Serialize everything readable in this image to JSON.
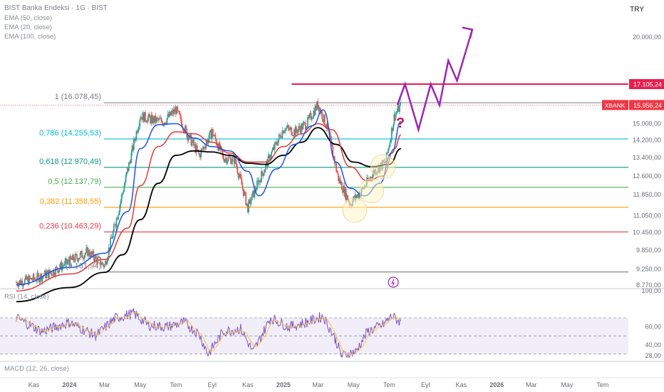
{
  "header": {
    "title": "BIST Banka Endeksi · 1G · BIST",
    "indicators": [
      "EMA (50, close)",
      "EMA (20, close)",
      "EMA (100, close)"
    ],
    "currency": "TRY"
  },
  "rsi_label": "RSI (14, close)",
  "macd_label": "MACD (12, 26, close)",
  "colors": {
    "candle_up": "#26a69a",
    "candle_down": "#ef5350",
    "ema20": "#1e53e5",
    "ema50": "#e53935",
    "ema100": "#000000",
    "resistance": "#e91e4f",
    "projection": "#9c27b0",
    "rsi": "#7e57c2",
    "rsi_ma": "#f5c542"
  },
  "chart_data": {
    "type": "line",
    "title": "BIST Banka Endeksi",
    "y_axis": {
      "scale": "log",
      "range": [
        8770,
        21500
      ],
      "ticks": [
        "20.000,00",
        "15.000,00",
        "14.200,00",
        "13.400,00",
        "12.600,00",
        "11.850,00",
        "11.050,00",
        "10.450,00",
        "9.850,00",
        "9.250,00",
        "8.770,00"
      ]
    },
    "x_axis": {
      "ticks": [
        "Kas",
        "2024",
        "Mar",
        "May",
        "Tem",
        "Eyl",
        "Kas",
        "2025",
        "Mar",
        "May",
        "Tem",
        "Eyl",
        "Kas",
        "2026",
        "Mar",
        "May",
        "Tem"
      ],
      "bold_ticks": [
        "2024",
        "2025",
        "2026"
      ]
    },
    "fibonacci_levels": [
      {
        "label": "1 (16.078,45)",
        "ratio": "1",
        "price": 16078.45,
        "color": "#787b86"
      },
      {
        "label": "0,786 (14.255,53)",
        "ratio": "0,786",
        "price": 14255.53,
        "color": "#00bcd4"
      },
      {
        "label": "0,618 (12.970,49)",
        "ratio": "0,618",
        "price": 12970.49,
        "color": "#089981"
      },
      {
        "label": "0,5 (12.137,79)",
        "ratio": "0,5",
        "price": 12137.79,
        "color": "#4caf50"
      },
      {
        "label": "0,382 (11.358,55)",
        "ratio": "0,382",
        "price": 11358.55,
        "color": "#ff9800"
      },
      {
        "label": "0,236 (10.463,29)",
        "ratio": "0,236",
        "price": 10463.29,
        "color": "#f23645"
      },
      {
        "label": "0 (9.161,94)",
        "ratio": "0",
        "price": 9161.94,
        "color": "#787b86"
      }
    ],
    "price_labels": [
      {
        "text": "17.105,24",
        "price": 17105.24,
        "color": "#e91e4f"
      },
      {
        "name": "XBANK",
        "text": "15.956,24",
        "price": 15956.24,
        "color": "#f23645"
      }
    ],
    "annotations": [
      "?"
    ],
    "close_series": {
      "x": [
        "2023-10-02",
        "2023-11-01",
        "2023-12-01",
        "2024-01-02",
        "2024-02-01",
        "2024-03-01",
        "2024-03-20",
        "2024-04-10",
        "2024-05-01",
        "2024-05-20",
        "2024-06-10",
        "2024-07-01",
        "2024-07-20",
        "2024-08-10",
        "2024-09-01",
        "2024-09-20",
        "2024-10-10",
        "2024-11-01",
        "2024-11-20",
        "2024-12-10",
        "2025-01-02",
        "2025-01-20",
        "2025-02-10",
        "2025-03-01",
        "2025-03-18",
        "2025-04-05",
        "2025-04-25",
        "2025-05-15",
        "2025-06-05",
        "2025-06-25",
        "2025-07-10",
        "2025-07-21"
      ],
      "values": [
        8850,
        8950,
        9150,
        9500,
        9800,
        9350,
        10800,
        12900,
        15400,
        15200,
        15100,
        15700,
        14500,
        13500,
        14600,
        13400,
        13300,
        11350,
        12400,
        13500,
        14800,
        14600,
        15000,
        16000,
        14700,
        12500,
        11500,
        12000,
        12800,
        13200,
        15400,
        15956
      ]
    },
    "ema20": {
      "x": [
        "2023-10-02",
        "2024-01-02",
        "2024-03-01",
        "2024-04-10",
        "2024-05-01",
        "2024-06-01",
        "2024-07-01",
        "2024-08-01",
        "2024-09-01",
        "2024-10-01",
        "2024-11-01",
        "2024-11-20",
        "2024-12-20",
        "2025-01-20",
        "2025-02-20",
        "2025-03-10",
        "2025-04-01",
        "2025-04-25",
        "2025-05-20",
        "2025-06-15",
        "2025-07-05",
        "2025-07-21"
      ],
      "values": [
        8780,
        9300,
        9750,
        11200,
        13800,
        14950,
        15000,
        14300,
        13900,
        13700,
        12800,
        11800,
        12900,
        14000,
        14900,
        15700,
        13200,
        12100,
        11800,
        12300,
        13600,
        15100
      ]
    },
    "ema50": {
      "x": [
        "2023-10-02",
        "2024-01-02",
        "2024-03-01",
        "2024-04-10",
        "2024-05-01",
        "2024-06-01",
        "2024-07-01",
        "2024-08-01",
        "2024-09-01",
        "2024-10-01",
        "2024-11-01",
        "2024-12-01",
        "2025-01-01",
        "2025-02-01",
        "2025-03-01",
        "2025-03-25",
        "2025-04-25",
        "2025-05-25",
        "2025-06-20",
        "2025-07-10",
        "2025-07-21"
      ],
      "values": [
        8600,
        9100,
        9550,
        10600,
        12200,
        13900,
        14600,
        14500,
        14100,
        13600,
        13200,
        13200,
        13900,
        14500,
        15000,
        14700,
        13000,
        12400,
        12600,
        13800,
        14450
      ]
    },
    "ema100": {
      "x": [
        "2023-10-02",
        "2024-01-02",
        "2024-03-01",
        "2024-04-01",
        "2024-05-01",
        "2024-06-01",
        "2024-07-01",
        "2024-08-01",
        "2024-09-01",
        "2024-10-01",
        "2024-11-01",
        "2024-12-01",
        "2025-01-01",
        "2025-02-01",
        "2025-03-01",
        "2025-04-01",
        "2025-05-01",
        "2025-06-01",
        "2025-07-01",
        "2025-07-21"
      ],
      "values": [
        8300,
        8700,
        9150,
        9700,
        10900,
        12300,
        13500,
        13700,
        13650,
        13500,
        13150,
        13100,
        13500,
        14100,
        14800,
        14000,
        13200,
        13000,
        13100,
        13800
      ]
    },
    "projection": {
      "x": [
        "2025-07-15",
        "2025-07-28",
        "2025-08-20",
        "2025-09-10",
        "2025-09-25",
        "2025-10-10",
        "2025-10-25",
        "2025-11-20"
      ],
      "values": [
        15956,
        17105,
        14700,
        17105,
        15950,
        18500,
        17300,
        20500
      ]
    },
    "resistance_line": {
      "price": 17105.24,
      "from": "2025-01-15",
      "to": "2026-07-31"
    },
    "highlight_circles": [
      {
        "x": "2025-05-03",
        "price": 11250
      },
      {
        "x": "2025-06-01",
        "price": 12000
      },
      {
        "x": "2025-06-20",
        "price": 13000
      }
    ],
    "rsi": {
      "range": [
        25,
        100
      ],
      "ticks": [
        "100,00",
        "60,00",
        "40,00",
        "28,00"
      ],
      "levels": [
        70,
        50,
        30
      ],
      "x": [
        "2023-10-02",
        "2023-11-15",
        "2024-01-01",
        "2024-02-15",
        "2024-03-20",
        "2024-04-20",
        "2024-05-15",
        "2024-06-15",
        "2024-07-15",
        "2024-08-10",
        "2024-08-25",
        "2024-09-20",
        "2024-10-20",
        "2024-11-10",
        "2024-12-10",
        "2025-01-10",
        "2025-02-10",
        "2025-03-10",
        "2025-04-01",
        "2025-04-10",
        "2025-05-05",
        "2025-05-25",
        "2025-06-20",
        "2025-07-05",
        "2025-07-21"
      ],
      "values": [
        70,
        55,
        65,
        50,
        70,
        75,
        62,
        60,
        65,
        52,
        30,
        55,
        58,
        32,
        70,
        60,
        65,
        72,
        45,
        28,
        33,
        55,
        62,
        72,
        65
      ]
    }
  }
}
